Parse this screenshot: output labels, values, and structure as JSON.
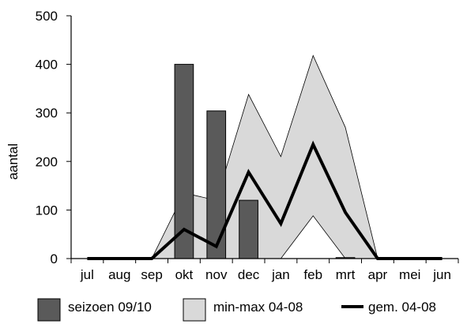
{
  "chart_data": {
    "type": "bar",
    "ylabel": "aantal",
    "xlabel": "",
    "ylim": [
      0,
      500
    ],
    "yticks": [
      0,
      100,
      200,
      300,
      400,
      500
    ],
    "categories": [
      "jul",
      "aug",
      "sep",
      "okt",
      "nov",
      "dec",
      "jan",
      "feb",
      "mrt",
      "apr",
      "mei",
      "jun"
    ],
    "series": [
      {
        "name": "seizoen 09/10",
        "kind": "bar",
        "color": "#5a5a5a",
        "values": [
          0,
          0,
          0,
          400,
          304,
          120,
          null,
          null,
          2,
          0,
          0,
          0
        ]
      },
      {
        "name": "min-max 04-08",
        "kind": "range-area",
        "color": "#d9d9d9",
        "min": [
          0,
          0,
          0,
          0,
          0,
          0,
          0,
          88,
          0,
          0,
          0,
          0
        ],
        "max": [
          0,
          0,
          0,
          135,
          120,
          338,
          210,
          418,
          270,
          0,
          0,
          0
        ]
      },
      {
        "name": "gem. 04-08",
        "kind": "line",
        "color": "#000000",
        "values": [
          0,
          0,
          0,
          60,
          25,
          178,
          72,
          235,
          95,
          0,
          0,
          0
        ]
      }
    ],
    "legend": "bottom",
    "grid": false
  }
}
